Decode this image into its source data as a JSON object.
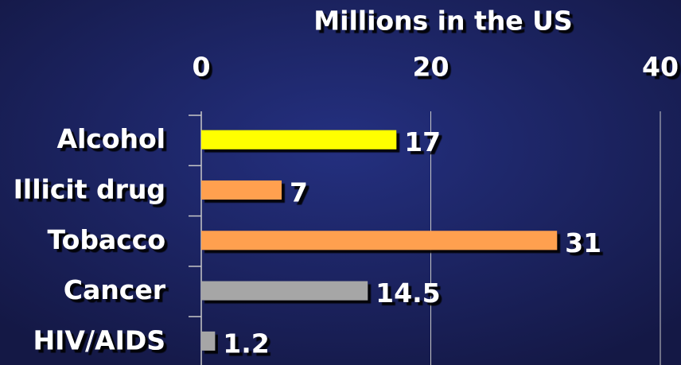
{
  "chart_data": {
    "type": "bar",
    "orientation": "horizontal",
    "x_label": "Millions in the US",
    "categories": [
      "Alcohol",
      "Illicit drug",
      "Tobacco",
      "Cancer",
      "HIV/AIDS"
    ],
    "values": [
      17,
      7,
      31,
      14.5,
      1.2
    ],
    "colors": [
      "#ffff00",
      "#ffa050",
      "#ffa050",
      "#a6a6a6",
      "#a6a6a6"
    ],
    "xlim": [
      0,
      40
    ],
    "xticks": [
      0,
      20,
      40
    ],
    "grid": true
  }
}
